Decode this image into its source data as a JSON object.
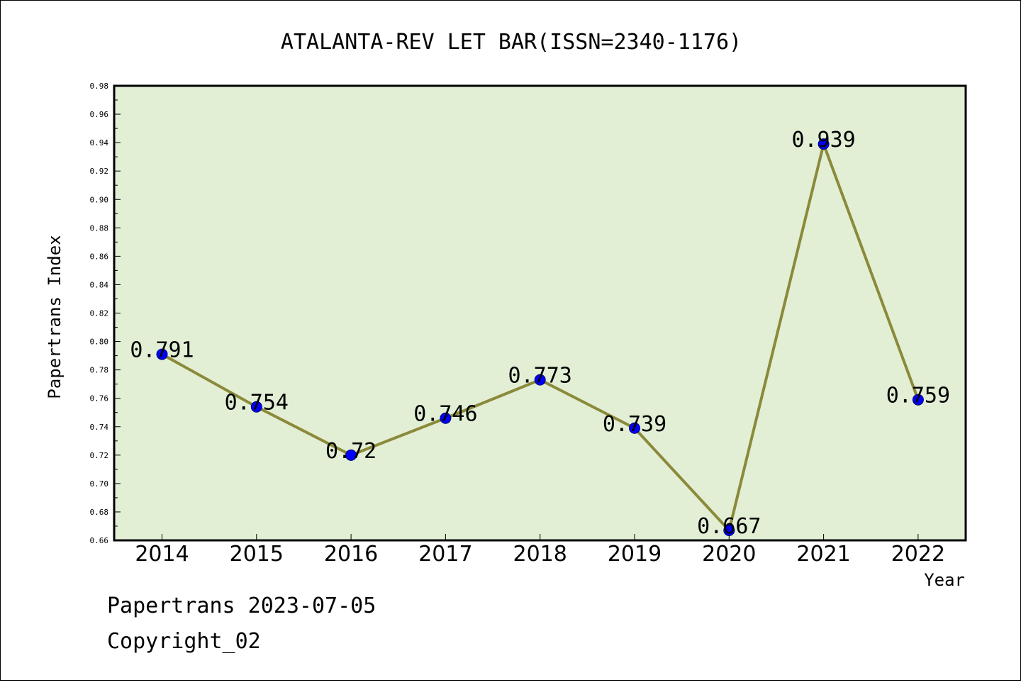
{
  "chart_data": {
    "type": "line",
    "title": "ATALANTA-REV LET BAR(ISSN=2340-1176)",
    "xlabel": "Year",
    "ylabel": "Papertrans Index",
    "categories": [
      "2014",
      "2015",
      "2016",
      "2017",
      "2018",
      "2019",
      "2020",
      "2021",
      "2022"
    ],
    "values": [
      0.791,
      0.754,
      0.72,
      0.746,
      0.773,
      0.739,
      0.667,
      0.939,
      0.759
    ],
    "data_labels": [
      "0.791",
      "0.754",
      "0.72",
      "0.746",
      "0.773",
      "0.739",
      "0.667",
      "0.939",
      "0.759"
    ],
    "ylim": [
      0.66,
      0.98
    ],
    "yticks": [
      "0.66",
      "0.68",
      "0.70",
      "0.72",
      "0.74",
      "0.76",
      "0.78",
      "0.80",
      "0.82",
      "0.84",
      "0.86",
      "0.88",
      "0.90",
      "0.92",
      "0.94",
      "0.96",
      "0.98"
    ],
    "grid": false,
    "colors": {
      "plot_background": "#e2efd5",
      "line": "#8b8a3a",
      "marker": "#0000ff"
    }
  },
  "footer": {
    "line1": "Papertrans 2023-07-05",
    "line2": "Copyright_02"
  }
}
